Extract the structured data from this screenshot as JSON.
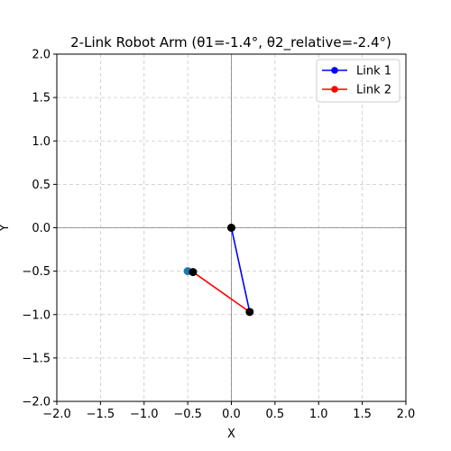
{
  "chart_data": {
    "type": "line",
    "title": "2-Link Robot Arm (θ1=-1.4°, θ2_relative=-2.4°)",
    "xlabel": "X",
    "ylabel": "Y",
    "xlim": [
      -2.0,
      2.0
    ],
    "ylim": [
      -2.0,
      2.0
    ],
    "xticks": [
      "−2.0",
      "−1.5",
      "−1.0",
      "−0.5",
      "0.0",
      "0.5",
      "1.0",
      "1.5",
      "2.0"
    ],
    "yticks": [
      "−2.0",
      "−1.5",
      "−1.0",
      "−0.5",
      "0.0",
      "0.5",
      "1.0",
      "1.5",
      "2.0"
    ],
    "grid": true,
    "legend_position": "top-right",
    "series": [
      {
        "name": "Link 1",
        "color": "#0000ff",
        "points": [
          [
            0.0,
            0.0
          ],
          [
            0.21,
            -0.97
          ]
        ]
      },
      {
        "name": "Link 2",
        "color": "#ff0000",
        "points": [
          [
            0.21,
            -0.97
          ],
          [
            -0.44,
            -0.51
          ]
        ]
      }
    ],
    "joints": [
      [
        0.0,
        0.0
      ],
      [
        0.21,
        -0.97
      ],
      [
        -0.44,
        -0.51
      ]
    ],
    "joint_color": "#000000",
    "target_point": {
      "x": -0.5,
      "y": -0.5,
      "color": "#1f77b4"
    }
  }
}
